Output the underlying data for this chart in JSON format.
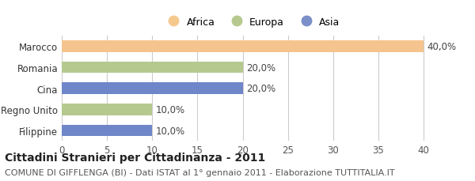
{
  "categories": [
    "Filippine",
    "Regno Unito",
    "Cina",
    "Romania",
    "Marocco"
  ],
  "values": [
    10.0,
    10.0,
    20.0,
    20.0,
    40.0
  ],
  "colors": [
    "#6f86c8",
    "#b5c98e",
    "#6f86c8",
    "#b5c98e",
    "#f5c48e"
  ],
  "legend_labels": [
    "Africa",
    "Europa",
    "Asia"
  ],
  "legend_colors": [
    "#f5c98e",
    "#b5c98e",
    "#7b8fc8"
  ],
  "bar_labels": [
    "10,0%",
    "10,0%",
    "20,0%",
    "20,0%",
    "40,0%"
  ],
  "xlim": [
    0,
    42
  ],
  "xticks": [
    0,
    5,
    10,
    15,
    20,
    25,
    30,
    35,
    40
  ],
  "title_bold": "Cittadini Stranieri per Cittadinanza - 2011",
  "subtitle": "COMUNE DI GIFFLENGA (BI) - Dati ISTAT al 1° gennaio 2011 - Elaborazione TUTTITALIA.IT",
  "bg_color": "#ffffff",
  "grid_color": "#cccccc",
  "bar_height": 0.55,
  "label_fontsize": 8.5,
  "tick_fontsize": 8.5,
  "legend_fontsize": 9,
  "title_fontsize": 10,
  "subtitle_fontsize": 8
}
